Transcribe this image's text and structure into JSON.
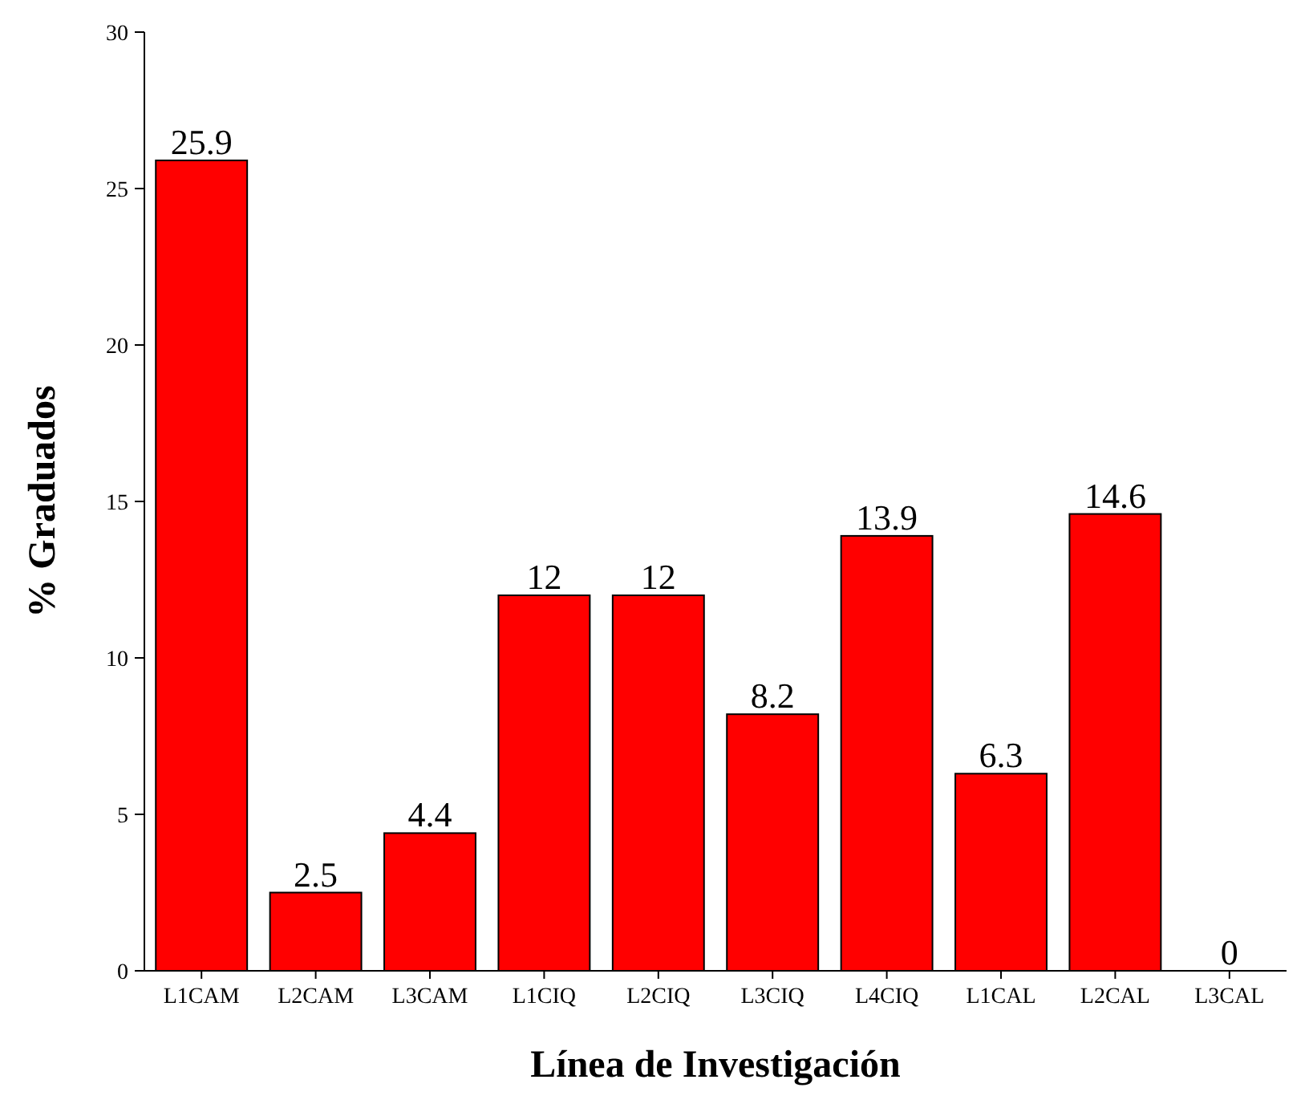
{
  "chart_data": {
    "type": "bar",
    "xlabel": "Línea de Investigación",
    "ylabel": "% Graduados",
    "categories": [
      "L1CAM",
      "L2CAM",
      "L3CAM",
      "L1CIQ",
      "L2CIQ",
      "L3CIQ",
      "L4CIQ",
      "L1CAL",
      "L2CAL",
      "L3CAL"
    ],
    "values": [
      25.9,
      2.5,
      4.4,
      12,
      12,
      8.2,
      13.9,
      6.3,
      14.6,
      0
    ],
    "color": "#ff0000",
    "ylim": [
      0,
      30
    ],
    "yticks": [
      0,
      5,
      10,
      15,
      20,
      25,
      30
    ],
    "data_labels": true
  }
}
